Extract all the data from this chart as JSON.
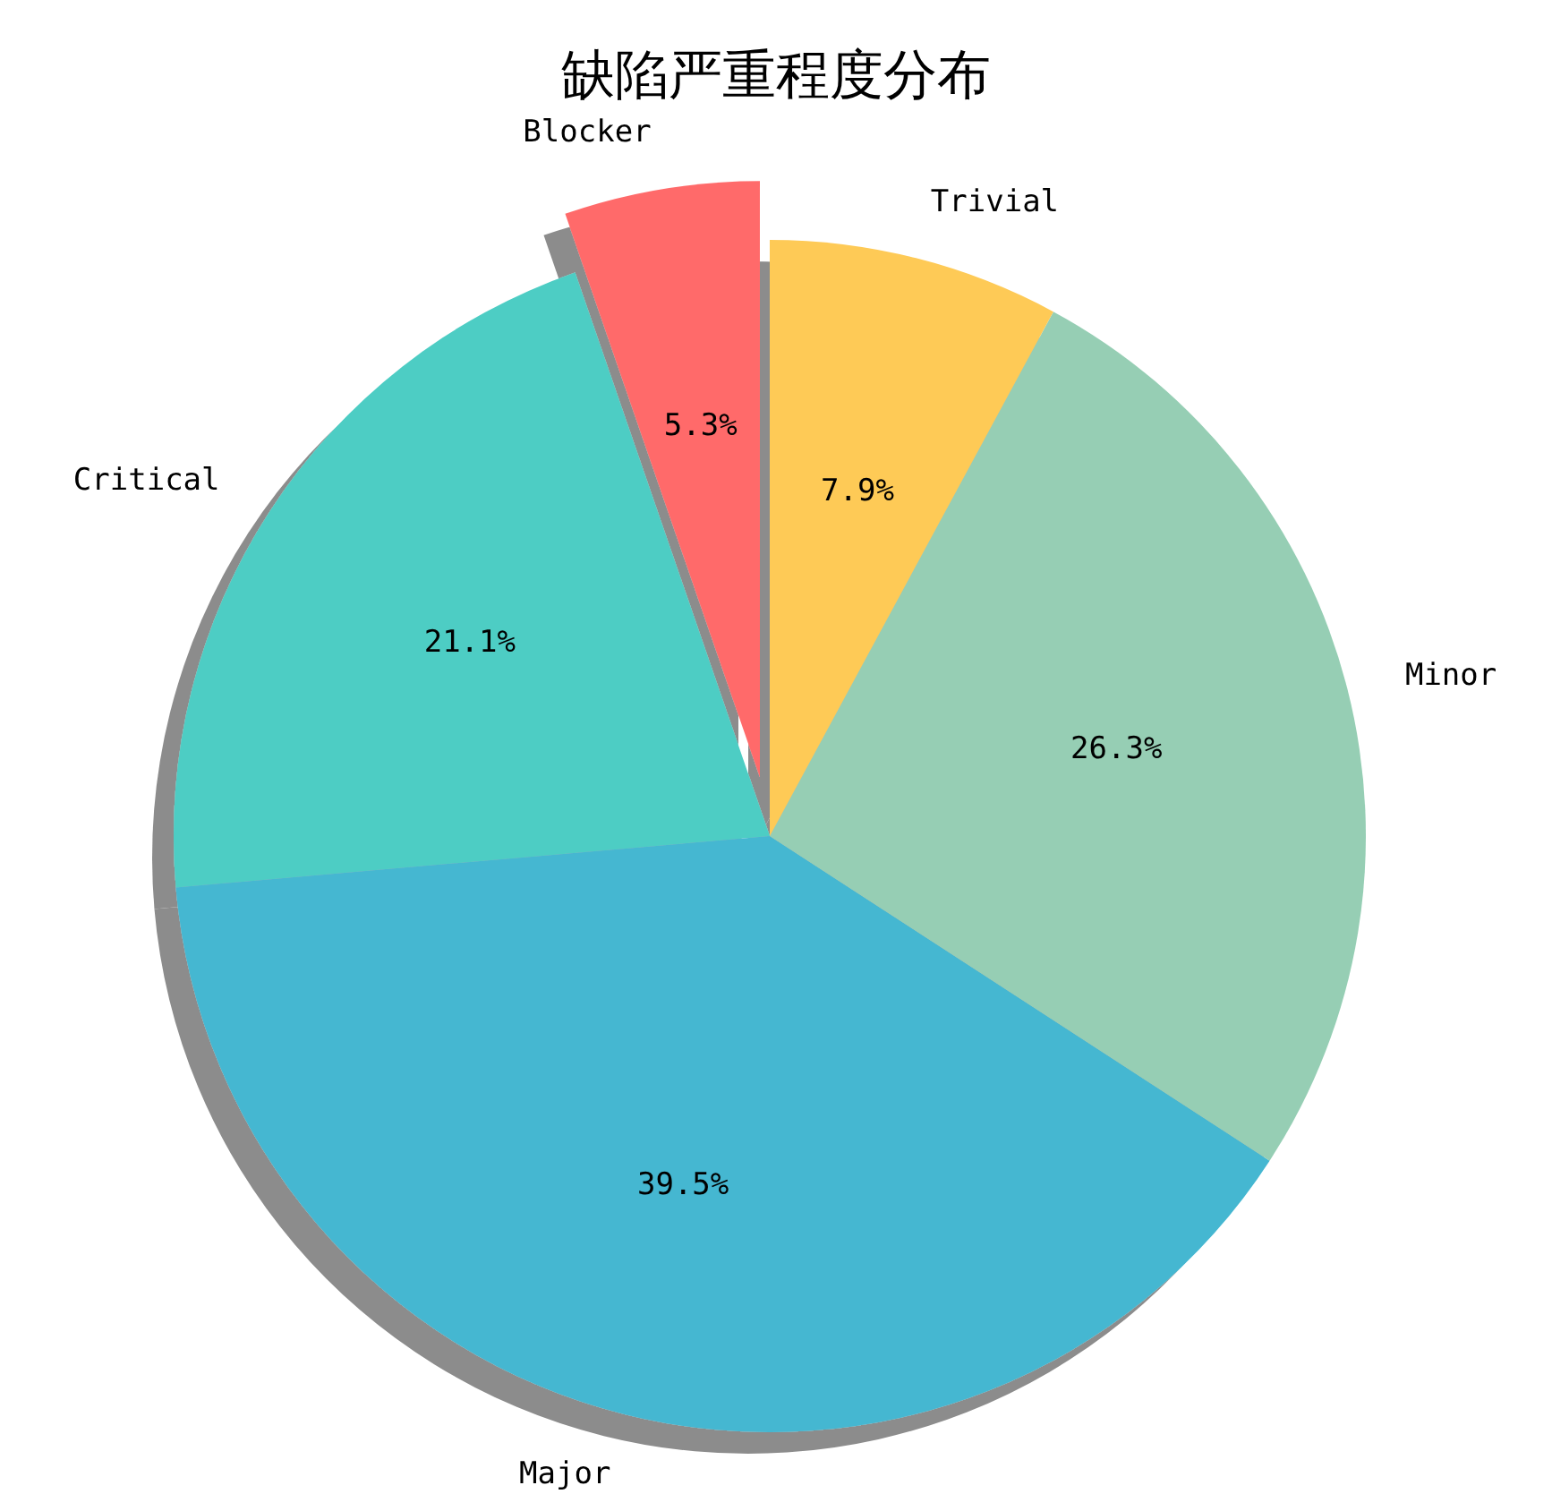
{
  "chart_data": {
    "type": "pie",
    "title": "缺陷严重程度分布",
    "categories": [
      "Blocker",
      "Critical",
      "Major",
      "Minor",
      "Trivial"
    ],
    "values": [
      5.3,
      21.1,
      39.5,
      26.3,
      7.9
    ],
    "colors": [
      "#ff6b6b",
      "#4ecdc4",
      "#45b7d1",
      "#96ceb4",
      "#feca57"
    ],
    "value_labels": [
      "5.3%",
      "21.1%",
      "39.5%",
      "26.3%",
      "7.9%"
    ]
  }
}
